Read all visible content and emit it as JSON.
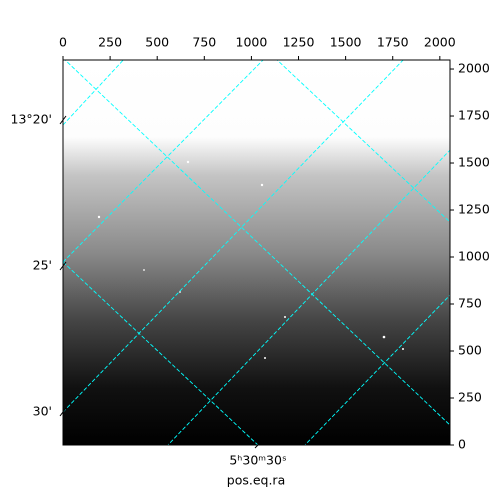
{
  "chart_data": {
    "type": "image",
    "xlabel": "pos.eq.ra",
    "xlim": [
      0,
      2054
    ],
    "ylim": [
      0,
      2048
    ],
    "xticks": [
      0,
      250,
      500,
      750,
      1000,
      1250,
      1500,
      1750,
      2000
    ],
    "yticks": [
      0,
      250,
      500,
      750,
      1000,
      1250,
      1500,
      1750,
      2000
    ],
    "world_y_ticks": [
      "13°20'",
      "25'",
      "30'"
    ],
    "world_x_ticks": [
      "5ʰ30ᵐ30ˢ"
    ],
    "grid_color": "#00ffff"
  }
}
